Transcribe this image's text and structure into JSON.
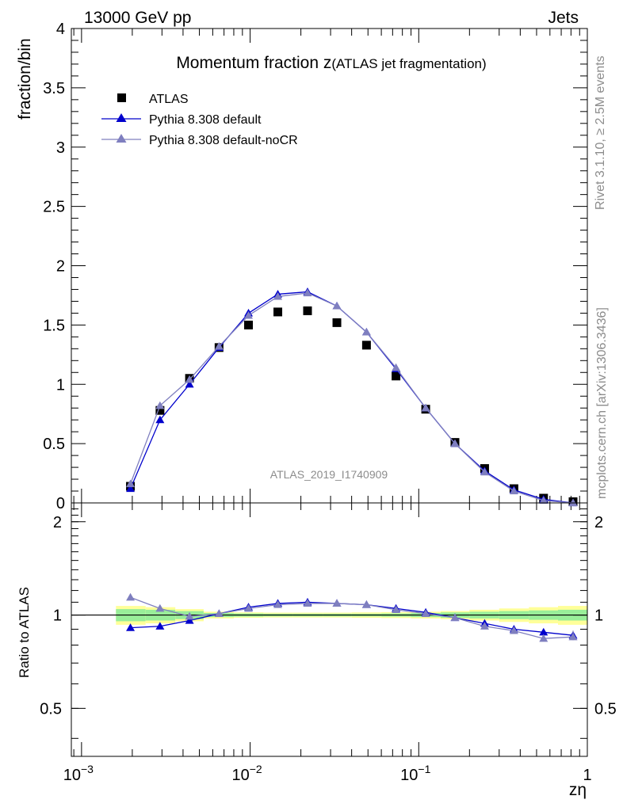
{
  "header": {
    "left": "13000 GeV pp",
    "right": "Jets"
  },
  "side_text": {
    "rivet": "Rivet 3.1.10, ≥ 2.5M events",
    "mcplots": "mcplots.cern.ch [arXiv:1306.3436]"
  },
  "chart_data": {
    "type": "line",
    "title_main": "Momentum fraction z",
    "title_sub": "(ATLAS jet fragmentation)",
    "analysis_id": "ATLAS_2019_I1740909",
    "xlabel": "zη",
    "ylabel": "fraction/bin",
    "ratio_ylabel": "Ratio to ATLAS",
    "x_scale": "log",
    "xlim": [
      0.00087,
      1
    ],
    "ylim": [
      0,
      4
    ],
    "ratio_ylim": [
      0.35,
      2.3
    ],
    "x_ticks": [
      {
        "v": 0.001,
        "base": "10",
        "exp": "−3"
      },
      {
        "v": 0.01,
        "base": "10",
        "exp": "−2"
      },
      {
        "v": 0.1,
        "base": "10",
        "exp": "−1"
      },
      {
        "v": 1,
        "base": "1",
        "exp": ""
      }
    ],
    "y_ticks": [
      {
        "v": 0,
        "label": "0"
      },
      {
        "v": 0.5,
        "label": "0.5"
      },
      {
        "v": 1,
        "label": "1"
      },
      {
        "v": 1.5,
        "label": "1.5"
      },
      {
        "v": 2,
        "label": "2"
      },
      {
        "v": 2.5,
        "label": "2.5"
      },
      {
        "v": 3,
        "label": "3"
      },
      {
        "v": 3.5,
        "label": "3.5"
      },
      {
        "v": 4,
        "label": "4"
      }
    ],
    "ratio_ticks": [
      {
        "v": 0.5,
        "label": "0.5"
      },
      {
        "v": 1,
        "label": "1"
      },
      {
        "v": 2,
        "label": "2"
      }
    ],
    "x": [
      0.00195,
      0.00292,
      0.00437,
      0.00654,
      0.00978,
      0.0146,
      0.0219,
      0.0327,
      0.049,
      0.0733,
      0.11,
      0.164,
      0.246,
      0.367,
      0.55,
      0.823
    ],
    "bin_edges": [
      0.0016,
      0.0024,
      0.0036,
      0.0053,
      0.008,
      0.012,
      0.018,
      0.027,
      0.04,
      0.06,
      0.09,
      0.135,
      0.2,
      0.3,
      0.45,
      0.67,
      1.0
    ],
    "band_inner": [
      0.045,
      0.04,
      0.03,
      0.015,
      0.012,
      0.01,
      0.01,
      0.01,
      0.01,
      0.012,
      0.015,
      0.02,
      0.025,
      0.03,
      0.035,
      0.04
    ],
    "band_outer": [
      0.07,
      0.06,
      0.045,
      0.025,
      0.02,
      0.018,
      0.018,
      0.018,
      0.02,
      0.022,
      0.025,
      0.03,
      0.04,
      0.05,
      0.06,
      0.07
    ],
    "series": [
      {
        "name": "ATLAS",
        "color": "#000000",
        "marker": "square",
        "values": [
          0.14,
          0.78,
          1.05,
          1.31,
          1.5,
          1.61,
          1.62,
          1.52,
          1.33,
          1.07,
          0.79,
          0.51,
          0.29,
          0.12,
          0.04,
          0.01
        ]
      },
      {
        "name": "Pythia 8.308 default",
        "color": "#0000cc",
        "marker": "triangle",
        "values": [
          0.12,
          0.7,
          1.0,
          1.31,
          1.6,
          1.76,
          1.78,
          1.66,
          1.44,
          1.13,
          0.8,
          0.5,
          0.27,
          0.11,
          0.03,
          0.0
        ],
        "ratio": [
          0.91,
          0.92,
          0.96,
          1.01,
          1.06,
          1.09,
          1.1,
          1.09,
          1.08,
          1.05,
          1.02,
          0.98,
          0.94,
          0.9,
          0.88,
          0.86
        ]
      },
      {
        "name": "Pythia 8.308 default-noCR",
        "color": "#7f7fbf",
        "marker": "triangle",
        "values": [
          0.16,
          0.82,
          1.04,
          1.32,
          1.58,
          1.74,
          1.77,
          1.66,
          1.44,
          1.14,
          0.8,
          0.5,
          0.26,
          0.1,
          0.02,
          0.0
        ],
        "ratio": [
          1.14,
          1.05,
          0.99,
          1.01,
          1.05,
          1.08,
          1.09,
          1.09,
          1.08,
          1.04,
          1.01,
          0.98,
          0.92,
          0.89,
          0.84,
          0.85
        ]
      }
    ]
  }
}
